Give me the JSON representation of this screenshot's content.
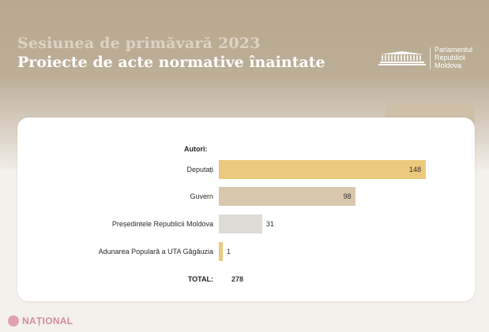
{
  "header": {
    "subtitle": "Sesiunea de primăvară 2023",
    "title": "Proiecte de acte normative înaintate",
    "logo_text": [
      "Parlamentul",
      "Republicii",
      "Moldova"
    ]
  },
  "chart_data": {
    "type": "bar",
    "orientation": "horizontal",
    "title": "Proiecte de acte normative înaintate",
    "category_header": "Autori:",
    "categories": [
      "Deputați",
      "Guvern",
      "Președintele Republicii Moldova",
      "Adunarea Populară a UTA Găgăuzia"
    ],
    "values": [
      148,
      98,
      31,
      1
    ],
    "value_labels": [
      "148",
      "98",
      "31",
      "1"
    ],
    "bar_colors": [
      "#ebca7d",
      "#d9c8ad",
      "#dedbd6",
      "#ebca7d"
    ],
    "value_label_position": [
      "inside",
      "inside",
      "outside",
      "outside"
    ],
    "total_label": "TOTAL:",
    "total_value": "278",
    "xlim": [
      0,
      160
    ],
    "grid": false
  },
  "colors": {
    "header_gradient_top": "#b8a88f",
    "background": "#f4f1ec",
    "card": "#ffffff",
    "accent_gold": "#ebca7d",
    "accent_beige": "#d9c8ad",
    "accent_grey": "#dedbd6"
  },
  "footer": {
    "brand": "NAȚIONAL",
    "icon": "national-logo-icon"
  }
}
